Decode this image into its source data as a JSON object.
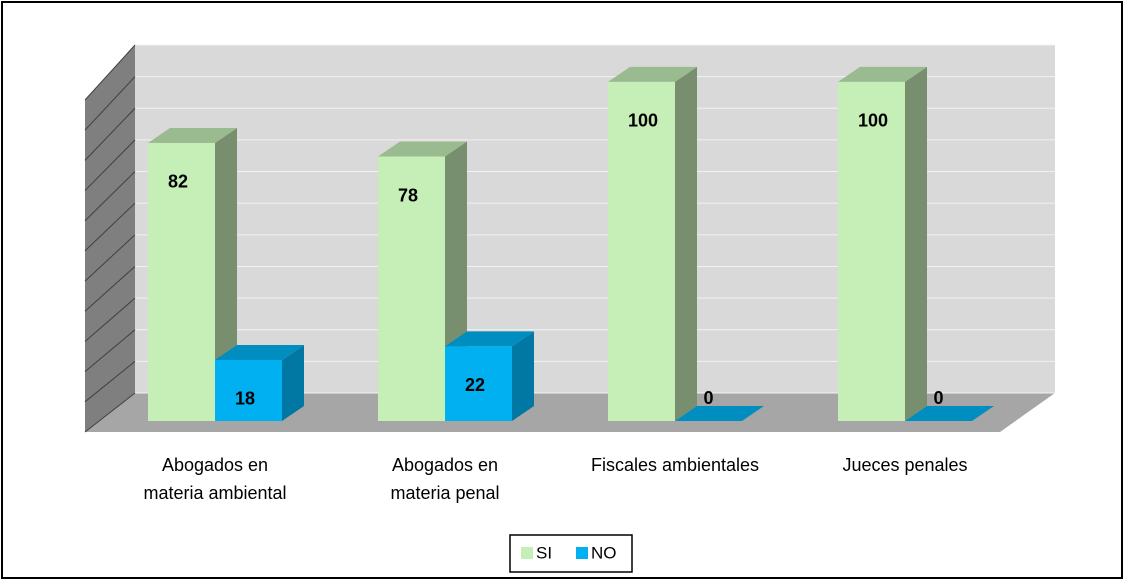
{
  "chart_data": {
    "type": "bar3d",
    "categories": [
      [
        "Abogados en",
        "materia ambiental"
      ],
      [
        "Abogados en",
        "materia penal"
      ],
      [
        "Fiscales ambientales"
      ],
      [
        "Jueces penales"
      ]
    ],
    "series": [
      {
        "name": "SI",
        "color": "#c6efb8",
        "values": [
          82,
          78,
          100,
          100
        ]
      },
      {
        "name": "NO",
        "color": "#00b0f0",
        "values": [
          18,
          22,
          0,
          0
        ]
      }
    ],
    "ylim": [
      0,
      110
    ],
    "yticks": [
      0,
      10,
      20,
      30,
      40,
      50,
      60,
      70,
      80,
      90,
      100,
      110
    ],
    "grid": true,
    "legend": "bottom"
  }
}
